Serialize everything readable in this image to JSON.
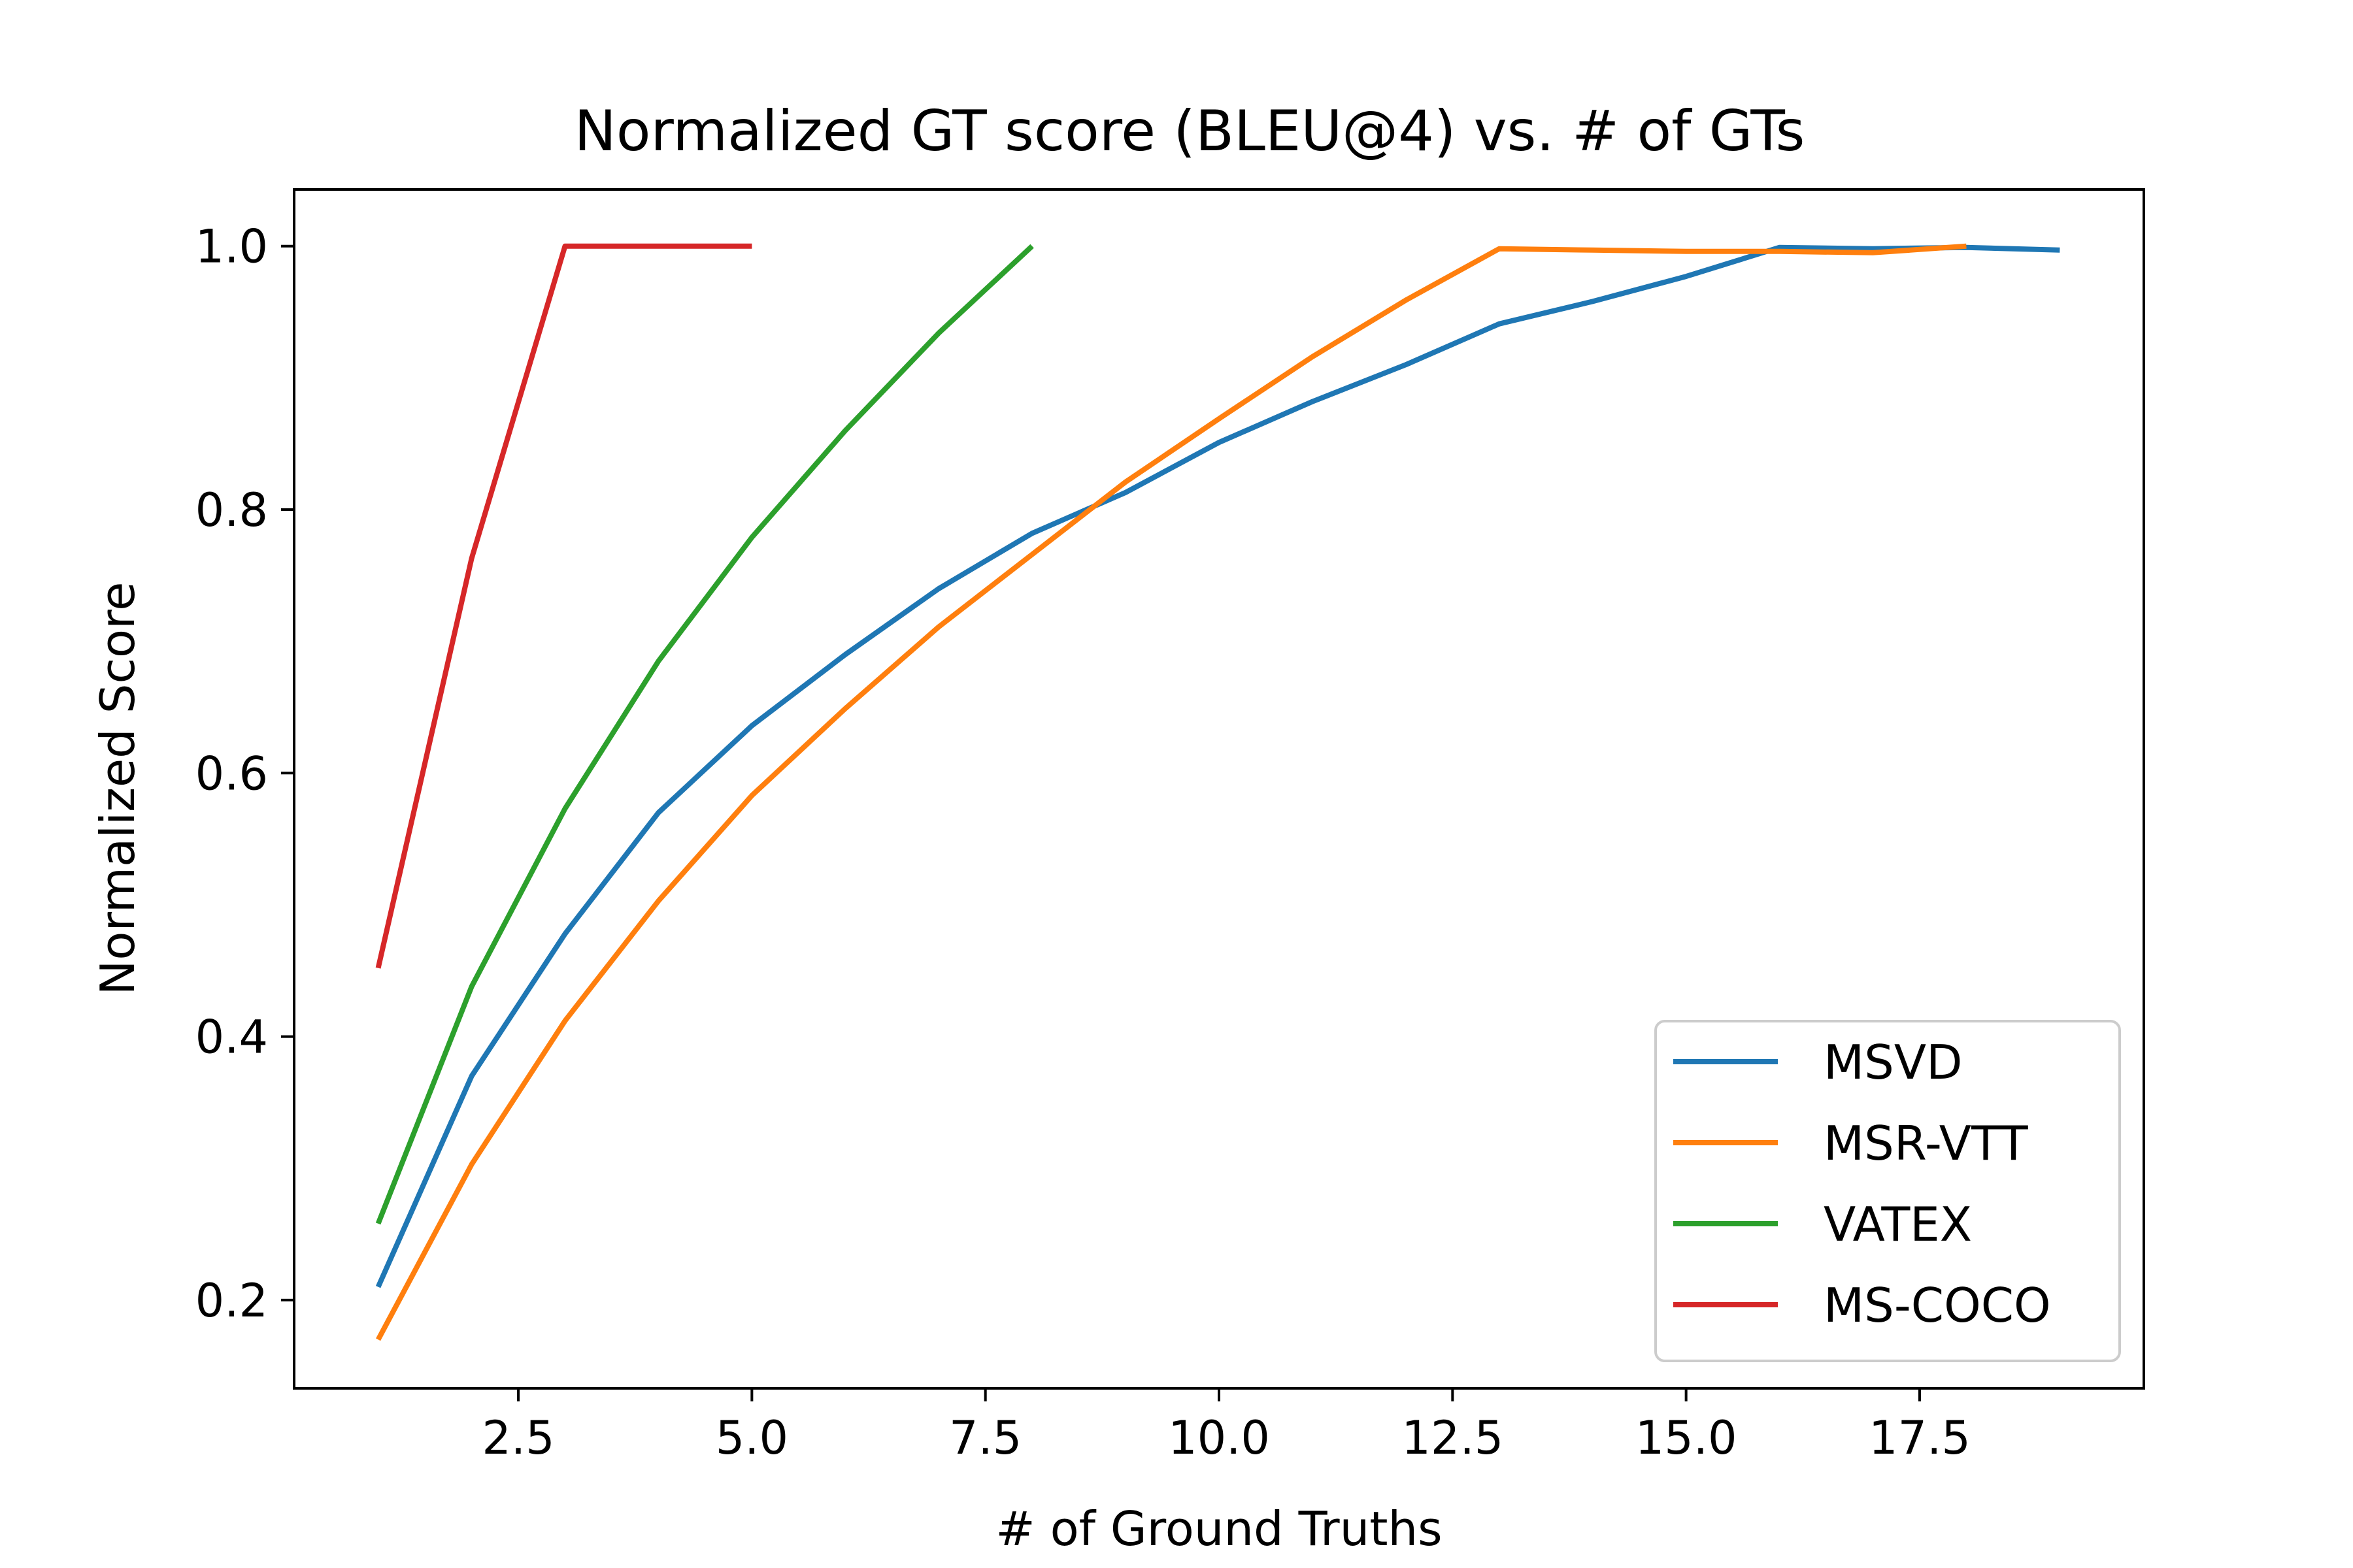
{
  "chart_data": {
    "type": "line",
    "title": "Normalized GT score (BLEU@4) vs. # of GTs",
    "xlabel": "# of Ground Truths",
    "ylabel": "Normalized Score",
    "xlim": [
      0.1,
      19.9
    ],
    "ylim": [
      0.133,
      1.043
    ],
    "xticks": [
      2.5,
      5.0,
      7.5,
      10.0,
      12.5,
      15.0,
      17.5
    ],
    "xtick_labels": [
      "2.5",
      "5.0",
      "7.5",
      "10.0",
      "12.5",
      "15.0",
      "17.5"
    ],
    "yticks": [
      0.2,
      0.4,
      0.6,
      0.8,
      1.0
    ],
    "ytick_labels": [
      "0.2",
      "0.4",
      "0.6",
      "0.8",
      "1.0"
    ],
    "grid": false,
    "legend_position": "lower-right",
    "series": [
      {
        "name": "MSVD",
        "color": "#1f77b4",
        "x": [
          1,
          2,
          3,
          4,
          5,
          6,
          7,
          8,
          9,
          10,
          11,
          12,
          13,
          14,
          15,
          16,
          17,
          18,
          19
        ],
        "y": [
          0.21,
          0.37,
          0.478,
          0.57,
          0.636,
          0.69,
          0.74,
          0.782,
          0.813,
          0.851,
          0.882,
          0.91,
          0.941,
          0.958,
          0.977,
          0.999,
          0.998,
          0.999,
          0.997
        ]
      },
      {
        "name": "MSR-VTT",
        "color": "#ff7f0e",
        "x": [
          1,
          2,
          3,
          4,
          5,
          6,
          7,
          8,
          9,
          10,
          11,
          12,
          13,
          14,
          15,
          16,
          17,
          18
        ],
        "y": [
          0.17,
          0.303,
          0.412,
          0.503,
          0.583,
          0.649,
          0.711,
          0.766,
          0.821,
          0.869,
          0.916,
          0.959,
          0.998,
          0.997,
          0.996,
          0.996,
          0.995,
          1.0
        ]
      },
      {
        "name": "VATEX",
        "color": "#2ca02c",
        "x": [
          1,
          2,
          3,
          4,
          5,
          6,
          7,
          8
        ],
        "y": [
          0.258,
          0.438,
          0.573,
          0.685,
          0.779,
          0.86,
          0.934,
          1.0
        ]
      },
      {
        "name": "MS-COCO",
        "color": "#d62728",
        "x": [
          1,
          2,
          3,
          4,
          5
        ],
        "y": [
          0.452,
          0.763,
          1.0,
          1.0,
          1.0
        ]
      }
    ]
  }
}
